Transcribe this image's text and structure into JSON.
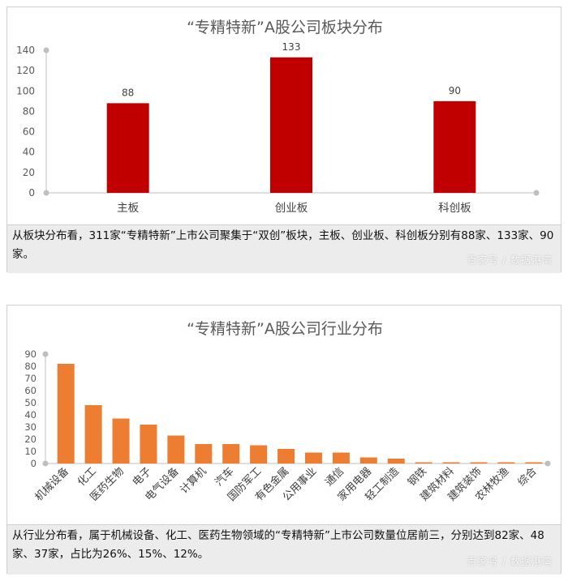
{
  "chart_data": [
    {
      "type": "bar",
      "title": "“专精特新”A股公司板块分布",
      "categories": [
        "主板",
        "创业板",
        "科创板"
      ],
      "values": [
        88,
        133,
        90
      ],
      "data_labels": [
        "88",
        "133",
        "90"
      ],
      "yticks": [
        "0",
        "20",
        "40",
        "60",
        "80",
        "100",
        "120",
        "140"
      ],
      "ylim": [
        0,
        140
      ],
      "color": "#c00000"
    },
    {
      "type": "bar",
      "title": "“专精特新”A股公司行业分布",
      "categories": [
        "机械设备",
        "化工",
        "医药生物",
        "电子",
        "电气设备",
        "计算机",
        "汽车",
        "国防军工",
        "有色金属",
        "公用事业",
        "通信",
        "家用电器",
        "轻工制造",
        "钢铁",
        "建筑材料",
        "建筑装饰",
        "农林牧渔",
        "综合"
      ],
      "values": [
        82,
        48,
        37,
        32,
        23,
        16,
        16,
        15,
        12,
        9,
        9,
        5,
        4,
        1,
        1,
        1,
        1,
        1
      ],
      "yticks": [
        "0",
        "10",
        "20",
        "30",
        "40",
        "50",
        "60",
        "70",
        "80",
        "90"
      ],
      "ylim": [
        0,
        90
      ],
      "color": "#ed7d31"
    }
  ],
  "captions": {
    "top": "从板块分布看，311家“专精特新”上市公司聚集于“双创”板块，主板、创业板、科创板分别有88家、133家、90家。",
    "bottom": "从行业分布看，属于机械设备、化工、医药生物领域的“专精特新”上市公司数量位居前三，分别达到82家、48家、37家，占比为26%、15%、12%。"
  },
  "watermark": "百家号 / 数据港湾"
}
